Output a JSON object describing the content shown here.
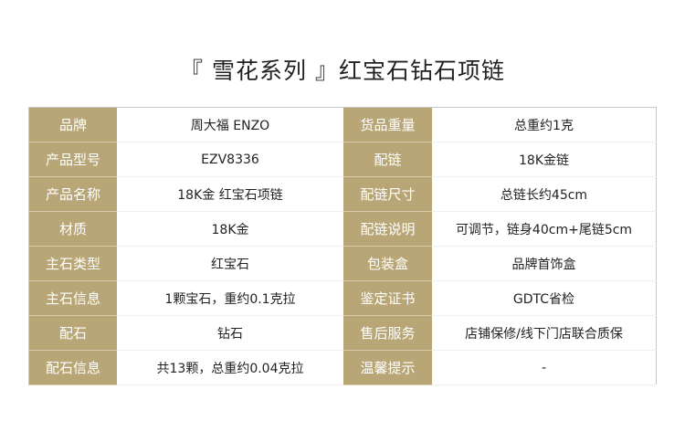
{
  "title": "『 雪花系列 』红宝石钻石项链",
  "accent_color": "#b8a677",
  "rows": [
    {
      "k1": "品牌",
      "v1": "周大福 ENZO",
      "k2": "货品重量",
      "v2": "总重约1克"
    },
    {
      "k1": "产品型号",
      "v1": "EZV8336",
      "k2": "配链",
      "v2": "18K金链"
    },
    {
      "k1": "产品名称",
      "v1": "18K金 红宝石项链",
      "k2": "配链尺寸",
      "v2": "总链长约45cm"
    },
    {
      "k1": "材质",
      "v1": "18K金",
      "k2": "配链说明",
      "v2": "可调节，链身40cm+尾链5cm"
    },
    {
      "k1": "主石类型",
      "v1": "红宝石",
      "k2": "包装盒",
      "v2": "品牌首饰盒"
    },
    {
      "k1": "主石信息",
      "v1": "1颗宝石，重约0.1克拉",
      "k2": "鉴定证书",
      "v2": "GDTC省检"
    },
    {
      "k1": "配石",
      "v1": "钻石",
      "k2": "售后服务",
      "v2": "店铺保修/线下门店联合质保"
    },
    {
      "k1": "配石信息",
      "v1": "共13颗，总重约0.04克拉",
      "k2": "温馨提示",
      "v2": "-"
    }
  ]
}
